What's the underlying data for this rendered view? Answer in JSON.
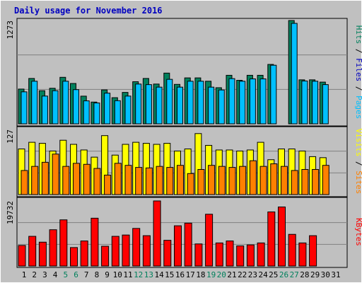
{
  "colors": {
    "background": "#c0c0c0",
    "title": "#0000c0",
    "hits": "#00805c",
    "files": "#00c0ff",
    "pages": "#00c0ff",
    "visits": "#ffff00",
    "sites": "#ff8000",
    "kbytes": "#ff0000",
    "weekend_day": "#00805c",
    "weekday": "#000000"
  },
  "chart_data": {
    "type": "bar",
    "title": "Daily usage for November 2016",
    "categories": [
      "1",
      "2",
      "3",
      "4",
      "5",
      "6",
      "7",
      "8",
      "9",
      "10",
      "11",
      "12",
      "13",
      "14",
      "15",
      "16",
      "17",
      "18",
      "19",
      "20",
      "21",
      "22",
      "23",
      "24",
      "25",
      "26",
      "27",
      "28",
      "29",
      "30",
      "31"
    ],
    "weekend_days": [
      "5",
      "6",
      "12",
      "13",
      "19",
      "20",
      "26",
      "27"
    ],
    "panels": [
      {
        "max_label": "1273",
        "legend": [
          {
            "text": "Hits",
            "color": "#00805c"
          },
          {
            "text": "Files",
            "color": "#0000c0"
          },
          {
            "text": "Pages",
            "color": "#00c0ff"
          }
        ],
        "separator": " / ",
        "ylim": [
          0,
          1273
        ],
        "series": [
          {
            "name": "Hits",
            "color": "#00805c",
            "values": [
              428,
              559,
              408,
              438,
              573,
              497,
              341,
              268,
              418,
              322,
              387,
              519,
              559,
              490,
              625,
              486,
              566,
              566,
              525,
              445,
              598,
              536,
              598,
              598,
              732,
              0,
              1273,
              542,
              542,
              514,
              0
            ]
          },
          {
            "name": "Files",
            "color": "#00c0ff",
            "values": [
              394,
              525,
              342,
              408,
              525,
              421,
              283,
              257,
              378,
              285,
              342,
              490,
              483,
              452,
              548,
              452,
              525,
              525,
              452,
              417,
              557,
              525,
              554,
              554,
              722,
              0,
              1238,
              528,
              525,
              483,
              0
            ]
          }
        ]
      },
      {
        "max_label": "127",
        "legend": [
          {
            "text": "Visits",
            "color": "#ffff00"
          },
          {
            "text": "Sites",
            "color": "#ff8000"
          }
        ],
        "separator": " / ",
        "ylim": [
          0,
          127
        ],
        "series": [
          {
            "name": "Visits",
            "color": "#ffff00",
            "values": [
              89,
              102,
              100,
              85,
              106,
              98,
              87,
              73,
              115,
              77,
              98,
              102,
              100,
              98,
              100,
              85,
              89,
              119,
              96,
              87,
              87,
              85,
              87,
              102,
              68,
              89,
              89,
              85,
              74,
              72,
              0
            ]
          },
          {
            "name": "Sites",
            "color": "#ff8000",
            "values": [
              47,
              55,
              63,
              79,
              55,
              61,
              59,
              51,
              38,
              61,
              57,
              53,
              52,
              55,
              53,
              57,
              41,
              49,
              57,
              55,
              53,
              55,
              66,
              55,
              60,
              55,
              47,
              49,
              49,
              57,
              0
            ]
          }
        ]
      },
      {
        "max_label": "19732",
        "legend": [
          {
            "text": "KBytes",
            "color": "#ff0000"
          }
        ],
        "separator": "",
        "ylim": [
          0,
          19732
        ],
        "series": [
          {
            "name": "KBytes",
            "color": "#ff0000",
            "values": [
              6237,
              9001,
              7237,
              11001,
              14001,
              5600,
              7600,
              14501,
              6001,
              9001,
              9401,
              11401,
              9201,
              19732,
              7801,
              12201,
              13001,
              6701,
              15701,
              7001,
              7601,
              6101,
              6401,
              7001,
              16401,
              17901,
              9601,
              7001,
              9201,
              0,
              0
            ]
          }
        ]
      }
    ]
  }
}
